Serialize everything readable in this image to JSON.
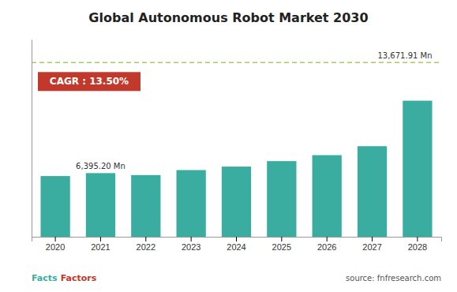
{
  "chart_data": {
    "type": "bar",
    "title": "Global Autonomous Robot Market 2030",
    "categories": [
      "2020",
      "2021",
      "2022",
      "2023",
      "2024",
      "2025",
      "2026",
      "2027",
      "2028"
    ],
    "values": [
      6100,
      6395,
      6200,
      6700,
      7050,
      7600,
      8200,
      9100,
      13671.91
    ],
    "color": "#3aada0",
    "ylim": [
      0,
      19824.2695
    ],
    "tick_labels": "x",
    "grid": false,
    "reference_line": {
      "value": 17500.0448,
      "color": "#a8c96b"
    },
    "annotations": [
      {
        "text": "6,395.20 Mn",
        "category": "2021"
      },
      {
        "text": "13,671.91 Mn",
        "category": "2028"
      }
    ],
    "cagr": {
      "text": "CAGR : 13.50%",
      "color": "#c0392b"
    },
    "source": "source: fnfresearch.com",
    "brand": [
      {
        "text": "Facts",
        "color": "#3aada0"
      },
      {
        "text": "Factors",
        "color": "#c0392b"
      }
    ]
  }
}
